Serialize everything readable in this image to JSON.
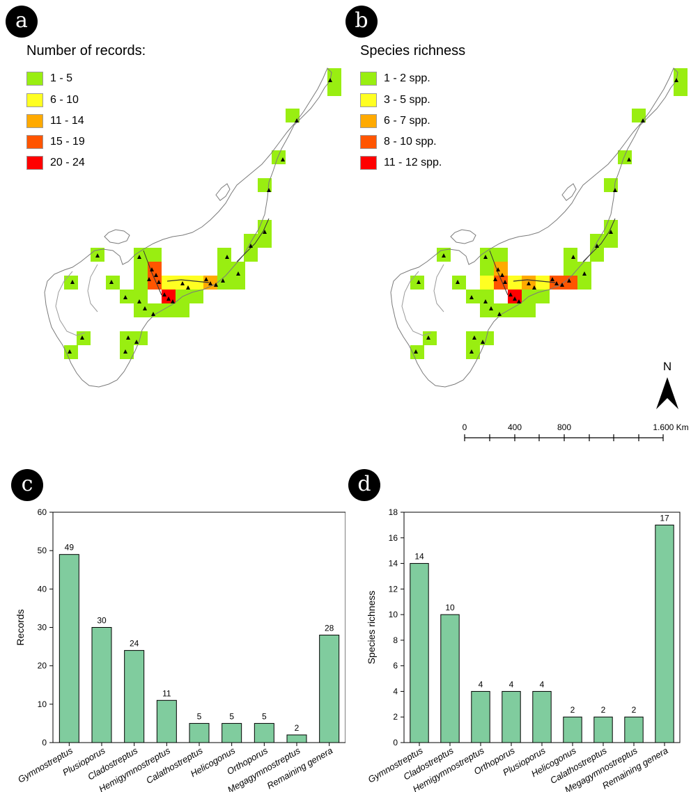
{
  "panels": {
    "a": "a",
    "b": "b",
    "c": "c",
    "d": "d"
  },
  "map_a": {
    "legend_title": "Number of records:",
    "legend": [
      {
        "label": "1 - 5",
        "color": "#99ee11"
      },
      {
        "label": "6 - 10",
        "color": "#ffff22"
      },
      {
        "label": "11 - 14",
        "color": "#ffaa00"
      },
      {
        "label": "15 - 19",
        "color": "#ff5500"
      },
      {
        "label": "20 - 24",
        "color": "#ff0000"
      }
    ]
  },
  "map_b": {
    "legend_title": "Species richness",
    "legend": [
      {
        "label": "1 - 2 spp.",
        "color": "#99ee11"
      },
      {
        "label": "3 - 5 spp.",
        "color": "#ffff22"
      },
      {
        "label": "6 - 7 spp.",
        "color": "#ffaa00"
      },
      {
        "label": "8 - 10 spp.",
        "color": "#ff5500"
      },
      {
        "label": "11 - 12 spp.",
        "color": "#ff0000"
      }
    ]
  },
  "north_arrow": {
    "label": "N"
  },
  "scale_bar": {
    "labels": [
      "0",
      "400",
      "800",
      "1.600 Km"
    ]
  },
  "chart_data": [
    {
      "type": "bar",
      "panel": "c",
      "ylabel": "Records",
      "xlabel": "",
      "ylim": [
        0,
        60
      ],
      "yticks": [
        0,
        10,
        20,
        30,
        40,
        50,
        60
      ],
      "categories": [
        "Gymnostreptus",
        "Plusioporus",
        "Cladostreptus",
        "Hemigymnostreptus",
        "Calathostreptus",
        "Helicogonus",
        "Orthoporus",
        "Megagymnostreptus",
        "Remaining genera"
      ],
      "values": [
        49,
        30,
        24,
        11,
        5,
        5,
        5,
        2,
        28
      ],
      "bar_color": "#80cc9e"
    },
    {
      "type": "bar",
      "panel": "d",
      "ylabel": "Species richness",
      "xlabel": "",
      "ylim": [
        0,
        18
      ],
      "yticks": [
        0,
        2,
        4,
        6,
        8,
        10,
        12,
        14,
        16,
        18
      ],
      "categories": [
        "Gymnostreptus",
        "Cladostreptus",
        "Hemigymnostreptus",
        "Orthoporus",
        "Plusioporus",
        "Helicogonus",
        "Calathostreptus",
        "Megagymnostreptus",
        "Remaining genera"
      ],
      "values": [
        14,
        10,
        4,
        4,
        4,
        2,
        2,
        2,
        17
      ],
      "bar_color": "#80cc9e"
    }
  ]
}
